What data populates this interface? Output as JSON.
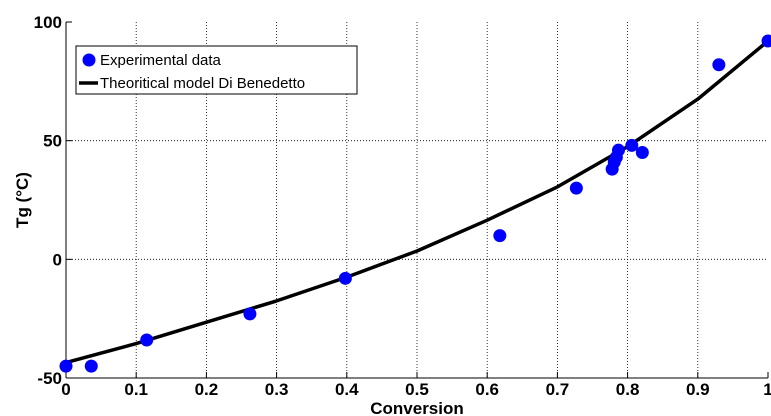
{
  "chart_data": {
    "type": "scatter",
    "title": "",
    "xlabel": "Conversion",
    "ylabel": "Tg (°C)",
    "xlim": [
      0,
      1
    ],
    "ylim": [
      -50,
      100
    ],
    "xticks": [
      0,
      0.1,
      0.2,
      0.3,
      0.4,
      0.5,
      0.6,
      0.7,
      0.8,
      0.9,
      1
    ],
    "xtick_labels": [
      "0",
      "0.1",
      "0.2",
      "0.3",
      "0.4",
      "0.5",
      "0.6",
      "0.7",
      "0.8",
      "0.9",
      "1"
    ],
    "yticks": [
      -50,
      0,
      50,
      100
    ],
    "ytick_labels": [
      "-50",
      "0",
      "50",
      "100"
    ],
    "grid": true,
    "legend_position": "top-left",
    "series": [
      {
        "name": "Experimental data",
        "kind": "scatter",
        "color": "#0000ff",
        "points": [
          [
            0.0,
            -45
          ],
          [
            0.036,
            -45
          ],
          [
            0.115,
            -34
          ],
          [
            0.262,
            -23
          ],
          [
            0.398,
            -8
          ],
          [
            0.618,
            10
          ],
          [
            0.727,
            30
          ],
          [
            0.778,
            38
          ],
          [
            0.781,
            41
          ],
          [
            0.784,
            43
          ],
          [
            0.787,
            46
          ],
          [
            0.806,
            48
          ],
          [
            0.821,
            45
          ],
          [
            0.93,
            82
          ],
          [
            1.0,
            92
          ]
        ]
      },
      {
        "name": "Theoritical model Di Benedetto",
        "kind": "line",
        "color": "#000000",
        "points": [
          [
            0.0,
            -43.5
          ],
          [
            0.1,
            -35.5
          ],
          [
            0.2,
            -26.5
          ],
          [
            0.3,
            -17.5
          ],
          [
            0.4,
            -7.5
          ],
          [
            0.5,
            3.5
          ],
          [
            0.6,
            16.5
          ],
          [
            0.7,
            30.5
          ],
          [
            0.8,
            47.5
          ],
          [
            0.9,
            67.5
          ],
          [
            1.0,
            92
          ]
        ]
      }
    ]
  }
}
